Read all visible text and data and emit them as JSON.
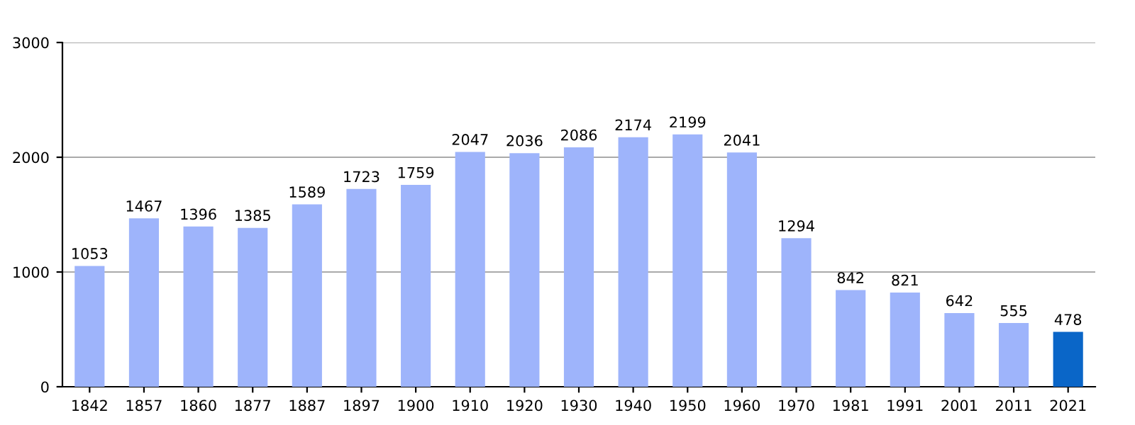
{
  "chart_data": {
    "type": "bar",
    "categories": [
      "1842",
      "1857",
      "1860",
      "1877",
      "1887",
      "1897",
      "1900",
      "1910",
      "1920",
      "1930",
      "1940",
      "1950",
      "1960",
      "1970",
      "1981",
      "1991",
      "2001",
      "2011",
      "2021"
    ],
    "values": [
      1053,
      1467,
      1396,
      1385,
      1589,
      1723,
      1759,
      2047,
      2036,
      2086,
      2174,
      2199,
      2041,
      1294,
      842,
      821,
      642,
      555,
      478
    ],
    "colors": [
      "#9eb4fb",
      "#9eb4fb",
      "#9eb4fb",
      "#9eb4fb",
      "#9eb4fb",
      "#9eb4fb",
      "#9eb4fb",
      "#9eb4fb",
      "#9eb4fb",
      "#9eb4fb",
      "#9eb4fb",
      "#9eb4fb",
      "#9eb4fb",
      "#9eb4fb",
      "#9eb4fb",
      "#9eb4fb",
      "#9eb4fb",
      "#9eb4fb",
      "#0a66c8"
    ],
    "ylim": [
      0,
      3000
    ],
    "yticks": [
      0,
      1000,
      2000,
      3000
    ],
    "grid": "y",
    "data_labels": true
  }
}
